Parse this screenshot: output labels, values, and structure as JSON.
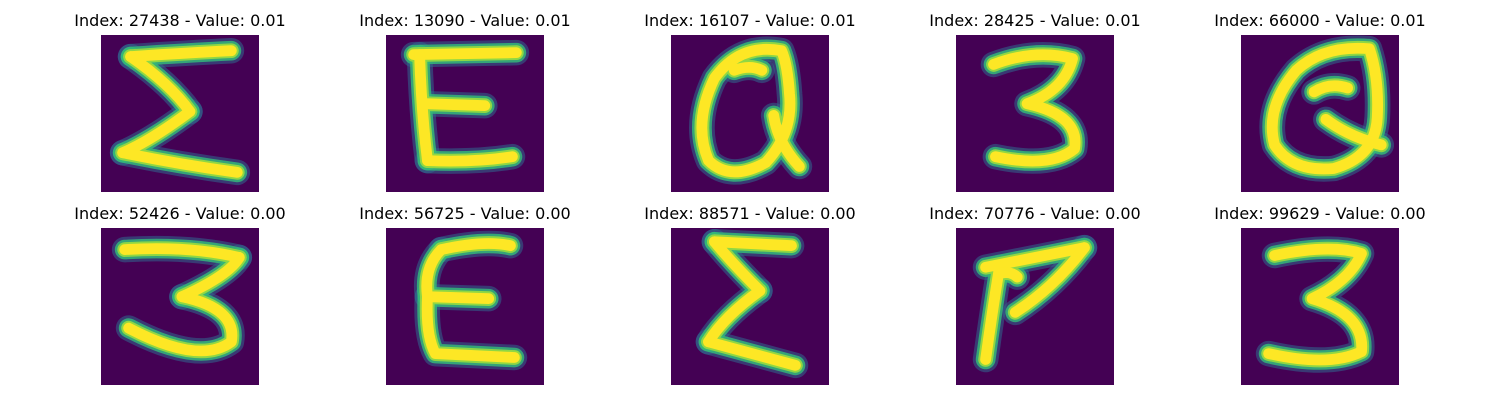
{
  "colors": {
    "background": "#440154",
    "stroke": "#fde725",
    "edge_outer": "#31688e",
    "edge_mid": "#35b779",
    "edge_inner": "#8fd744",
    "title_text": "#000000"
  },
  "panels": [
    {
      "title": "Index: 27438 - Value: 0.01",
      "glyph": "sigma",
      "strokes": [
        "M 30 22 Q 90 18 132 16",
        "M 30 22 Q 70 50 90 78",
        "M 90 78 Q 50 108 22 120",
        "M 22 120 Q 80 132 138 140"
      ]
    },
    {
      "title": "Index: 13090 - Value: 0.01",
      "glyph": "E",
      "strokes": [
        "M 28 20 L 132 18",
        "M 34 20 Q 36 80 42 128",
        "M 40 70 L 100 72",
        "M 42 128 Q 90 130 128 124"
      ]
    },
    {
      "title": "Index: 16107 - Value: 0.01",
      "glyph": "cursive-Q",
      "strokes": [
        "M 112 16 Q 70 8 44 44 Q 22 90 38 128 Q 60 150 96 130 Q 124 100 120 60 Q 118 30 112 16",
        "M 64 36 Q 80 30 92 36",
        "M 104 82 Q 108 110 130 134"
      ]
    },
    {
      "title": "Index: 28425 - Value: 0.01",
      "glyph": "3",
      "strokes": [
        "M 38 30 Q 80 14 118 24 Q 110 56 72 70 Q 126 82 120 116 Q 96 136 40 124"
      ]
    },
    {
      "title": "Index: 66000 - Value: 0.01",
      "glyph": "cursive-Q",
      "strokes": [
        "M 130 14 Q 84 10 56 36 Q 24 74 34 112 Q 52 140 94 136 Q 136 124 138 84 Q 140 44 130 14",
        "M 74 58 Q 90 48 108 54",
        "M 86 86 Q 110 104 142 112"
      ]
    },
    {
      "title": "Index: 52426 - Value: 0.00",
      "glyph": "3",
      "strokes": [
        "M 24 22 Q 90 18 140 30",
        "M 140 30 Q 130 48 82 70",
        "M 82 70 Q 138 82 132 116 Q 100 140 28 102"
      ]
    },
    {
      "title": "Index: 56725 - Value: 0.00",
      "glyph": "E",
      "strokes": [
        "M 56 22 Q 100 12 126 18",
        "M 56 22 Q 38 40 42 70",
        "M 42 70 L 104 72",
        "M 42 70 Q 40 110 50 128 L 130 132"
      ]
    },
    {
      "title": "Index: 88571 - Value: 0.00",
      "glyph": "sigma",
      "strokes": [
        "M 44 14 L 122 18",
        "M 44 14 Q 62 36 90 64",
        "M 90 64 Q 54 90 38 116",
        "M 38 116 Q 90 130 126 140"
      ]
    },
    {
      "title": "Index: 70776 - Value: 0.00",
      "glyph": "7",
      "strokes": [
        "M 30 40 Q 80 30 130 20",
        "M 130 20 Q 100 60 60 86",
        "M 44 40 Q 36 90 30 134",
        "M 46 46 Q 56 44 62 50"
      ]
    },
    {
      "title": "Index: 99629 - Value: 0.00",
      "glyph": "3",
      "strokes": [
        "M 34 28 Q 90 16 122 26 Q 110 54 72 72 Q 126 88 122 126 Q 90 142 28 128"
      ]
    }
  ]
}
